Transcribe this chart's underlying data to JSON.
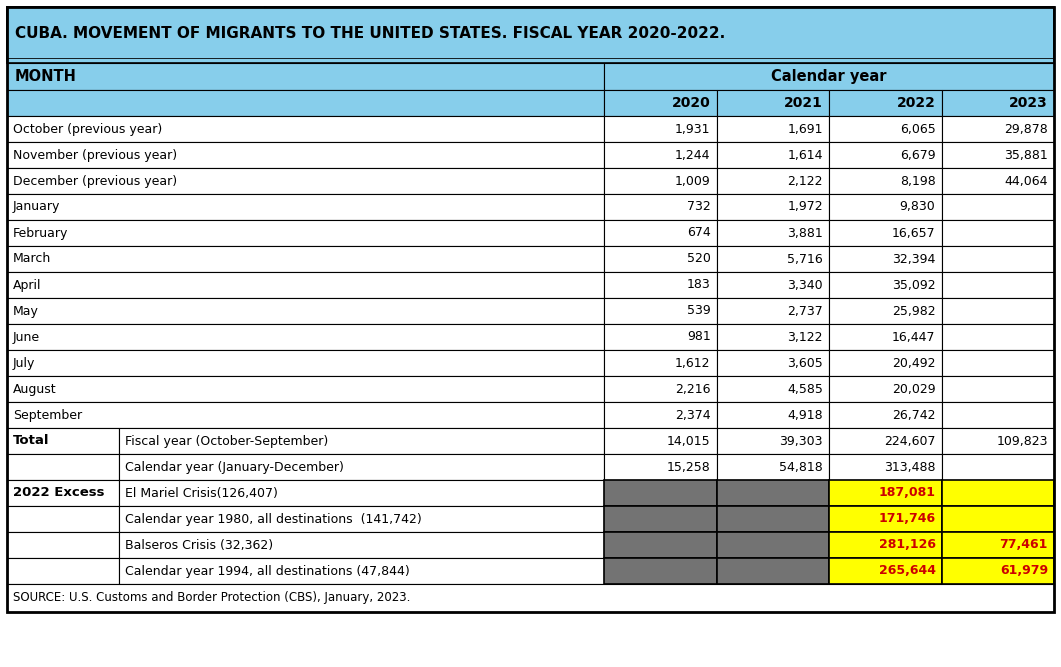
{
  "title": "CUBA. MOVEMENT OF MIGRANTS TO THE UNITED STATES. FISCAL YEAR 2020-2022.",
  "title_bg": "#87ceeb",
  "header_bg": "#87ceeb",
  "white_bg": "#ffffff",
  "gray_bg": "#737373",
  "yellow_bg": "#ffff00",
  "red_text": "#cc0000",
  "black_text": "#000000",
  "source": "SOURCE: U.S. Customs and Border Protection (CBS), January, 2023.",
  "col_header_span": "Calendar year",
  "years": [
    "2020",
    "2021",
    "2022",
    "2023"
  ],
  "months": [
    "October (previous year)",
    "November (previous year)",
    "December (previous year)",
    "January",
    "February",
    "March",
    "April",
    "May",
    "June",
    "July",
    "August",
    "September"
  ],
  "month_data": [
    [
      "1,931",
      "1,691",
      "6,065",
      "29,878"
    ],
    [
      "1,244",
      "1,614",
      "6,679",
      "35,881"
    ],
    [
      "1,009",
      "2,122",
      "8,198",
      "44,064"
    ],
    [
      "732",
      "1,972",
      "9,830",
      ""
    ],
    [
      "674",
      "3,881",
      "16,657",
      ""
    ],
    [
      "520",
      "5,716",
      "32,394",
      ""
    ],
    [
      "183",
      "3,340",
      "35,092",
      ""
    ],
    [
      "539",
      "2,737",
      "25,982",
      ""
    ],
    [
      "981",
      "3,122",
      "16,447",
      ""
    ],
    [
      "1,612",
      "3,605",
      "20,492",
      ""
    ],
    [
      "2,216",
      "4,585",
      "20,029",
      ""
    ],
    [
      "2,374",
      "4,918",
      "26,742",
      ""
    ]
  ],
  "total_rows": [
    {
      "label1": "Total",
      "label2": "Fiscal year (October-September)",
      "values": [
        "14,015",
        "39,303",
        "224,607",
        "109,823"
      ]
    },
    {
      "label1": "",
      "label2": "Calendar year (January-December)",
      "values": [
        "15,258",
        "54,818",
        "313,488",
        ""
      ]
    }
  ],
  "excess_rows": [
    {
      "label1": "2022 Excess",
      "label2": "El Mariel Crisis(126,407)",
      "values": [
        "",
        "",
        "187,081",
        ""
      ],
      "cell_colors": [
        "gray",
        "gray",
        "yellow",
        "yellow"
      ]
    },
    {
      "label1": "",
      "label2": "Calendar year 1980, all destinations  (141,742)",
      "values": [
        "",
        "",
        "171,746",
        ""
      ],
      "cell_colors": [
        "gray",
        "gray",
        "yellow",
        "yellow"
      ]
    },
    {
      "label1": "",
      "label2": "Balseros Crisis (32,362)",
      "values": [
        "",
        "",
        "281,126",
        "77,461"
      ],
      "cell_colors": [
        "gray",
        "gray",
        "yellow",
        "yellow"
      ]
    },
    {
      "label1": "",
      "label2": "Calendar year 1994, all destinations (47,844)",
      "values": [
        "",
        "",
        "265,644",
        "61,979"
      ],
      "cell_colors": [
        "gray",
        "gray",
        "yellow",
        "yellow"
      ]
    }
  ]
}
